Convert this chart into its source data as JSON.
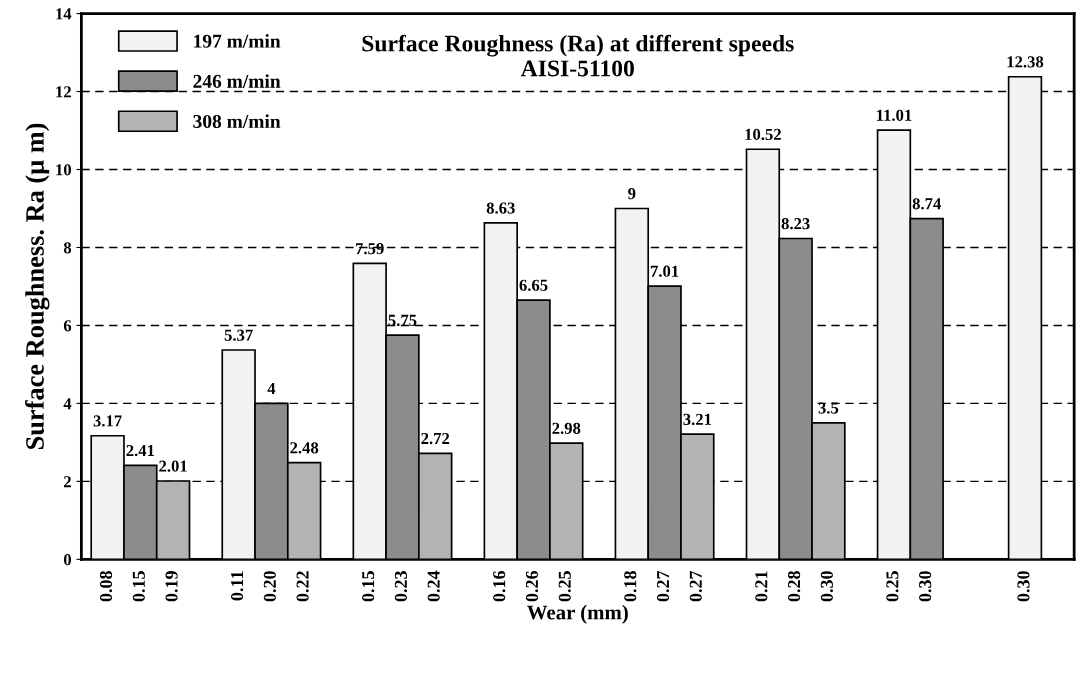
{
  "chart_data": {
    "type": "bar",
    "title": "Surface Roughness (Ra) at different speeds\nAISI-51100",
    "xlabel": "Wear (mm)",
    "ylabel": "Surface Roughness. Ra (μ m)",
    "categories": [
      "0.08",
      "0.15",
      "0.19",
      null,
      "0.11",
      "0.20",
      "0.22",
      null,
      "0.15",
      "0.23",
      "0.24",
      null,
      "0.16",
      "0.26",
      "0.25",
      null,
      "0.18",
      "0.27",
      "0.27",
      null,
      "0.21",
      "0.28",
      "0.30",
      null,
      "0.25",
      "0.30",
      null,
      null,
      "0.30",
      null
    ],
    "series": [
      {
        "name": "197 m/min",
        "color": "#f2f2f2",
        "values": [
          3.17,
          null,
          null,
          null,
          5.37,
          null,
          null,
          null,
          7.59,
          null,
          null,
          null,
          8.63,
          null,
          null,
          null,
          9,
          null,
          null,
          null,
          10.52,
          null,
          null,
          null,
          11.01,
          null,
          null,
          null,
          12.38,
          null
        ]
      },
      {
        "name": "246 m/min",
        "color": "#8c8c8c",
        "values": [
          null,
          2.41,
          null,
          null,
          null,
          4,
          null,
          null,
          null,
          5.75,
          null,
          null,
          null,
          6.65,
          null,
          null,
          null,
          7.01,
          null,
          null,
          null,
          8.23,
          null,
          null,
          null,
          8.74,
          null,
          null,
          null,
          null
        ]
      },
      {
        "name": "308 m/min",
        "color": "#b3b3b3",
        "values": [
          null,
          null,
          2.01,
          null,
          null,
          null,
          2.48,
          null,
          null,
          null,
          2.72,
          null,
          null,
          null,
          2.98,
          null,
          null,
          null,
          3.21,
          null,
          null,
          null,
          3.5,
          null,
          null,
          null,
          null,
          null,
          null,
          null
        ]
      }
    ],
    "ylim": [
      0,
      14
    ],
    "yticks": [
      0,
      2,
      4,
      6,
      8,
      10,
      12,
      14
    ],
    "grid": "y",
    "legend": "top left",
    "data_labels": true
  }
}
